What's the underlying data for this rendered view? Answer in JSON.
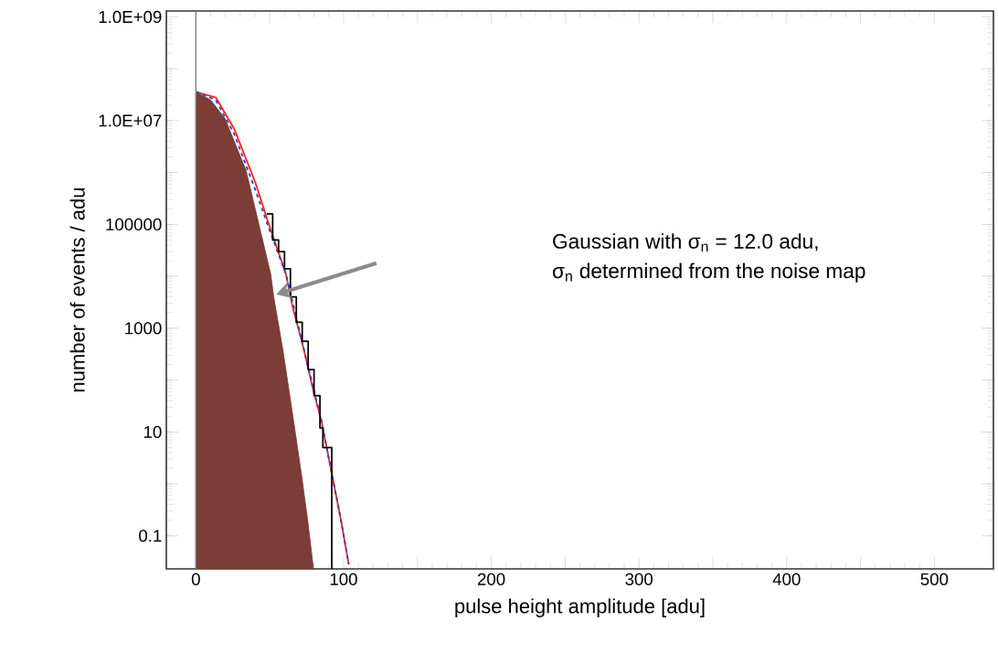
{
  "chart_data": {
    "type": "line",
    "xlabel": "pulse height amplitude  [adu]",
    "ylabel": "number of events / adu",
    "log": "y",
    "grid": false,
    "xlim": [
      -20,
      540
    ],
    "ylim": [
      0.023,
      1300000000.0
    ],
    "xticks": [
      0,
      {
        "value": 50,
        "label": null
      },
      100,
      {
        "value": 150,
        "label": null
      },
      200,
      {
        "value": 250,
        "label": null
      },
      300,
      {
        "value": 350,
        "label": null
      },
      400,
      {
        "value": 450,
        "label": null
      },
      500
    ],
    "yticks": [
      0.1,
      {
        "value": 1,
        "label": null
      },
      10,
      {
        "value": 100,
        "label": null
      },
      1000,
      {
        "value": 10000,
        "label": null
      },
      100000,
      {
        "value": 1000000,
        "label": null
      },
      {
        "value": 10000000,
        "label": "1.0E+07"
      },
      {
        "value": 100000000,
        "label": null
      },
      {
        "value": 1000000000,
        "label": "1.0E+09"
      }
    ],
    "series": [
      {
        "type": "area",
        "color": "#7b3d35",
        "x": [
          0,
          10,
          19.7,
          34,
          50.7,
          52.8,
          59,
          65.2,
          71.4,
          75.6,
          79.5
        ],
        "values": [
          36000000.0,
          25000000.0,
          11000000.0,
          1100000.0,
          11000.0,
          3900,
          370,
          25,
          1.6,
          0.21,
          0.025
        ]
      },
      {
        "color": "#ff2a1a",
        "x": [
          0,
          13.5,
          25.9,
          40.4,
          48.5,
          61,
          65.2,
          73.3,
          79.5,
          84.9,
          92,
          98.1,
          103.5
        ],
        "values": [
          36000000.0,
          28000000.0,
          7000000.0,
          630000.0,
          120000.0,
          11000.0,
          2800,
          370,
          63,
          17,
          1.6,
          0.21,
          0.028
        ]
      },
      {
        "type": "line",
        "color": "#3344cc",
        "line_style": "dashed",
        "x": [
          0,
          13.5,
          25.9,
          40.4,
          48.5,
          61,
          73.3,
          84.9,
          92,
          98.1,
          103.5
        ],
        "values": [
          36000000.0,
          25000000.0,
          5600000.0,
          450000.0,
          100000.0,
          11000.0,
          370,
          17,
          1.6,
          0.21,
          0.028
        ]
      },
      {
        "type": "step",
        "color": "#000000",
        "x": [
          48,
          52,
          56,
          60,
          64,
          68,
          72,
          76,
          80,
          84,
          86,
          92
        ],
        "values": [
          160000.0,
          50000.0,
          30000.0,
          14000.0,
          4000,
          1300,
          560,
          160,
          50,
          12,
          5,
          0.023
        ]
      }
    ],
    "ref_lines": [
      {
        "axis": "x",
        "value": 0,
        "color": "#808080"
      }
    ],
    "annotations": [
      "Gaussian with σ$_{n}$ = 12.0 adu,",
      "σ$_{n}$ determined from the noise map"
    ]
  }
}
